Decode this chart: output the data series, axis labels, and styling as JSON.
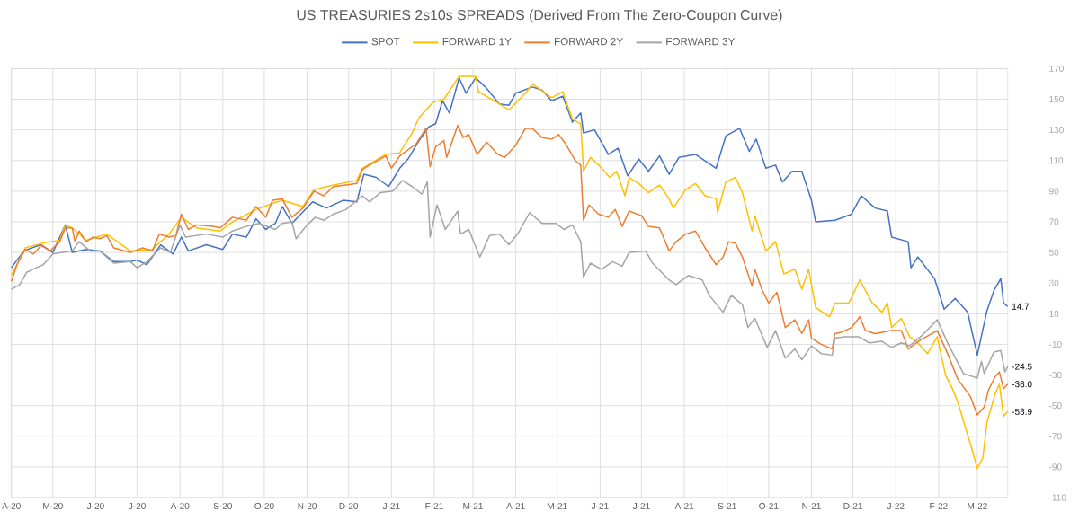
{
  "chart_data": {
    "type": "line",
    "title": "US TREASURIES 2s10s SPREADS (Derived From The Zero-Coupon Curve)",
    "xlim": [
      "2020-04-01",
      "2022-03-23"
    ],
    "ylim": [
      -110,
      170
    ],
    "xticks": [
      {
        "value": "2020-04-01",
        "label": "A-20"
      },
      {
        "value": "2020-05-01",
        "label": "M-20"
      },
      {
        "value": "2020-06-01",
        "label": "J-20"
      },
      {
        "value": "2020-07-01",
        "label": "J-20"
      },
      {
        "value": "2020-08-01",
        "label": "A-20"
      },
      {
        "value": "2020-09-01",
        "label": "S-20"
      },
      {
        "value": "2020-10-01",
        "label": "O-20"
      },
      {
        "value": "2020-11-01",
        "label": "N-20"
      },
      {
        "value": "2020-12-01",
        "label": "D-20"
      },
      {
        "value": "2021-01-01",
        "label": "J-21"
      },
      {
        "value": "2021-02-01",
        "label": "F-21"
      },
      {
        "value": "2021-03-01",
        "label": "M-21"
      },
      {
        "value": "2021-04-01",
        "label": "A-21"
      },
      {
        "value": "2021-05-01",
        "label": "M-21"
      },
      {
        "value": "2021-06-01",
        "label": "J-21"
      },
      {
        "value": "2021-07-01",
        "label": "J-21"
      },
      {
        "value": "2021-08-01",
        "label": "A-21"
      },
      {
        "value": "2021-09-01",
        "label": "S-21"
      },
      {
        "value": "2021-10-01",
        "label": "O-21"
      },
      {
        "value": "2021-11-01",
        "label": "N-21"
      },
      {
        "value": "2021-12-01",
        "label": "D-21"
      },
      {
        "value": "2022-01-01",
        "label": "J-22"
      },
      {
        "value": "2022-02-01",
        "label": "F-22"
      },
      {
        "value": "2022-03-01",
        "label": "M-22"
      }
    ],
    "yticks": [
      -110,
      -90,
      -70,
      -50,
      -30,
      -10,
      10,
      30,
      50,
      70,
      90,
      110,
      130,
      150,
      170
    ],
    "grid": true,
    "legend": "top",
    "annotations": [
      {
        "text": "14.7",
        "x": "2022-03-23",
        "y": 14.7
      },
      {
        "text": "-24.5",
        "x": "2022-03-23",
        "y": -24.5
      },
      {
        "text": "-36.0",
        "x": "2022-03-23",
        "y": -36.0
      },
      {
        "text": "-53.9",
        "x": "2022-03-23",
        "y": -53.9
      }
    ],
    "series": [
      {
        "name": "SPOT",
        "color": "#4472c4",
        "x": [
          "2020-04-01",
          "2020-04-10",
          "2020-04-22",
          "2020-05-01",
          "2020-05-10",
          "2020-05-15",
          "2020-05-25",
          "2020-06-04",
          "2020-06-14",
          "2020-06-26",
          "2020-07-01",
          "2020-07-08",
          "2020-07-18",
          "2020-07-27",
          "2020-08-02",
          "2020-08-07",
          "2020-08-20",
          "2020-09-01",
          "2020-09-08",
          "2020-09-18",
          "2020-09-25",
          "2020-10-02",
          "2020-10-09",
          "2020-10-14",
          "2020-10-21",
          "2020-11-05",
          "2020-11-15",
          "2020-11-27",
          "2020-12-07",
          "2020-12-12",
          "2020-12-21",
          "2020-12-30",
          "2021-01-07",
          "2021-01-13",
          "2021-01-21",
          "2021-01-28",
          "2021-02-02",
          "2021-02-07",
          "2021-02-12",
          "2021-02-19",
          "2021-02-24",
          "2021-03-03",
          "2021-03-11",
          "2021-03-20",
          "2021-03-27",
          "2021-04-01",
          "2021-04-13",
          "2021-04-20",
          "2021-04-27",
          "2021-05-05",
          "2021-05-12",
          "2021-05-18",
          "2021-05-20",
          "2021-05-28",
          "2021-06-07",
          "2021-06-14",
          "2021-06-21",
          "2021-06-29",
          "2021-07-06",
          "2021-07-14",
          "2021-07-21",
          "2021-07-28",
          "2021-08-09",
          "2021-08-24",
          "2021-08-31",
          "2021-09-10",
          "2021-09-17",
          "2021-09-22",
          "2021-09-29",
          "2021-10-06",
          "2021-10-11",
          "2021-10-18",
          "2021-10-25",
          "2021-11-01",
          "2021-11-04",
          "2021-11-18",
          "2021-11-30",
          "2021-12-07",
          "2021-12-17",
          "2021-12-26",
          "2021-12-29",
          "2022-01-10",
          "2022-01-12",
          "2022-01-17",
          "2022-01-29",
          "2022-02-05",
          "2022-02-13",
          "2022-02-22",
          "2022-03-01",
          "2022-03-08",
          "2022-03-13",
          "2022-03-18",
          "2022-03-20",
          "2022-03-23"
        ],
        "values": [
          40,
          51,
          55,
          50,
          68,
          50,
          52,
          51,
          44,
          44,
          45,
          42,
          55,
          49,
          60,
          51,
          55,
          52,
          62,
          60,
          72,
          65,
          69,
          80,
          69,
          83,
          79,
          84,
          83,
          101,
          99,
          93,
          105,
          111,
          123,
          132,
          134,
          149,
          141,
          164,
          154,
          164,
          157,
          147,
          146,
          154,
          158,
          156,
          149,
          152,
          135,
          141,
          128,
          130,
          114,
          118,
          100,
          111,
          103,
          113,
          101,
          112,
          114,
          105,
          126,
          131,
          116,
          124,
          105,
          107,
          96,
          103,
          103,
          84,
          70,
          71,
          75,
          87,
          79,
          77,
          60,
          57,
          40,
          47,
          33,
          13,
          20,
          11,
          -17,
          12,
          25,
          33,
          17,
          14.7
        ]
      },
      {
        "name": "FORWARD 1Y",
        "color": "#ffc000",
        "x": [
          "2020-04-01",
          "2020-04-11",
          "2020-04-23",
          "2020-05-06",
          "2020-05-10",
          "2020-05-15",
          "2020-05-25",
          "2020-06-09",
          "2020-06-26",
          "2020-07-12",
          "2020-07-24",
          "2020-08-02",
          "2020-08-13",
          "2020-08-30",
          "2020-09-08",
          "2020-09-25",
          "2020-10-07",
          "2020-10-14",
          "2020-10-29",
          "2020-11-06",
          "2020-11-20",
          "2020-12-07",
          "2020-12-11",
          "2020-12-28",
          "2021-01-07",
          "2021-01-16",
          "2021-01-21",
          "2021-01-31",
          "2021-02-08",
          "2021-02-19",
          "2021-03-03",
          "2021-03-05",
          "2021-03-20",
          "2021-03-27",
          "2021-04-08",
          "2021-04-13",
          "2021-04-27",
          "2021-05-05",
          "2021-05-12",
          "2021-05-18",
          "2021-05-20",
          "2021-05-25",
          "2021-05-31",
          "2021-06-08",
          "2021-06-13",
          "2021-06-19",
          "2021-06-22",
          "2021-06-29",
          "2021-07-06",
          "2021-07-14",
          "2021-07-21",
          "2021-07-24",
          "2021-08-02",
          "2021-08-09",
          "2021-08-16",
          "2021-08-24",
          "2021-08-25",
          "2021-08-31",
          "2021-09-07",
          "2021-09-12",
          "2021-09-19",
          "2021-09-21",
          "2021-09-29",
          "2021-10-06",
          "2021-10-12",
          "2021-10-20",
          "2021-10-25",
          "2021-10-30",
          "2021-11-04",
          "2021-11-14",
          "2021-11-18",
          "2021-11-28",
          "2021-12-06",
          "2021-12-15",
          "2021-12-22",
          "2021-12-26",
          "2021-12-29",
          "2022-01-05",
          "2022-01-11",
          "2022-01-17",
          "2022-01-24",
          "2022-01-31",
          "2022-02-06",
          "2022-02-11",
          "2022-02-15",
          "2022-02-19",
          "2022-02-25",
          "2022-03-01",
          "2022-03-05",
          "2022-03-08",
          "2022-03-14",
          "2022-03-17",
          "2022-03-20",
          "2022-03-23"
        ],
        "values": [
          35,
          53,
          56,
          58,
          68,
          66,
          58,
          62,
          51,
          52,
          62,
          73,
          66,
          64,
          70,
          78,
          82,
          84,
          80,
          91,
          94,
          97,
          105,
          114,
          115,
          128,
          138,
          148,
          150,
          165,
          165,
          155,
          147,
          143,
          154,
          160,
          151,
          155,
          137,
          134,
          103,
          112,
          107,
          99,
          103,
          87,
          99,
          95,
          89,
          94,
          85,
          79,
          91,
          95,
          87,
          85,
          76,
          96,
          99,
          89,
          64,
          74,
          51,
          57,
          36,
          39,
          26,
          39,
          14,
          8,
          17,
          17,
          32,
          17,
          11,
          17,
          1,
          7,
          -5,
          -9,
          -16,
          -5,
          -30,
          -39,
          -48,
          -60,
          -78,
          -91,
          -84,
          -61,
          -42,
          -36,
          -57,
          -53.9
        ]
      },
      {
        "name": "FORWARD 2Y",
        "color": "#ed7d31",
        "x": [
          "2020-04-01",
          "2020-04-05",
          "2020-04-11",
          "2020-04-17",
          "2020-04-23",
          "2020-04-29",
          "2020-05-06",
          "2020-05-10",
          "2020-05-15",
          "2020-05-17",
          "2020-05-20",
          "2020-05-25",
          "2020-05-30",
          "2020-06-04",
          "2020-06-09",
          "2020-06-14",
          "2020-06-26",
          "2020-07-05",
          "2020-07-12",
          "2020-07-17",
          "2020-07-24",
          "2020-07-29",
          "2020-08-02",
          "2020-08-07",
          "2020-08-13",
          "2020-08-25",
          "2020-08-30",
          "2020-09-08",
          "2020-09-18",
          "2020-09-25",
          "2020-10-02",
          "2020-10-07",
          "2020-10-14",
          "2020-10-21",
          "2020-10-29",
          "2020-11-06",
          "2020-11-13",
          "2020-11-20",
          "2020-11-29",
          "2020-12-07",
          "2020-12-11",
          "2020-12-16",
          "2020-12-28",
          "2021-01-01",
          "2021-01-07",
          "2021-01-19",
          "2021-01-26",
          "2021-01-29",
          "2021-02-02",
          "2021-02-08",
          "2021-02-10",
          "2021-02-18",
          "2021-02-22",
          "2021-02-26",
          "2021-03-04",
          "2021-03-11",
          "2021-03-19",
          "2021-03-24",
          "2021-04-01",
          "2021-04-08",
          "2021-04-13",
          "2021-04-20",
          "2021-04-27",
          "2021-05-02",
          "2021-05-07",
          "2021-05-14",
          "2021-05-18",
          "2021-05-20",
          "2021-05-24",
          "2021-05-31",
          "2021-06-07",
          "2021-06-12",
          "2021-06-17",
          "2021-06-22",
          "2021-07-01",
          "2021-07-06",
          "2021-07-14",
          "2021-07-21",
          "2021-07-26",
          "2021-08-02",
          "2021-08-09",
          "2021-08-16",
          "2021-08-24",
          "2021-08-29",
          "2021-09-02",
          "2021-09-07",
          "2021-09-12",
          "2021-09-19",
          "2021-09-21",
          "2021-09-26",
          "2021-10-01",
          "2021-10-07",
          "2021-10-13",
          "2021-10-20",
          "2021-10-25",
          "2021-10-30",
          "2021-11-01",
          "2021-11-08",
          "2021-11-16",
          "2021-11-18",
          "2021-11-23",
          "2021-11-30",
          "2021-12-06",
          "2021-12-10",
          "2021-12-17",
          "2021-12-29",
          "2022-01-05",
          "2022-01-10",
          "2022-01-19",
          "2022-01-31",
          "2022-02-08",
          "2022-02-15",
          "2022-02-24",
          "2022-03-01",
          "2022-03-06",
          "2022-03-09",
          "2022-03-14",
          "2022-03-17",
          "2022-03-20",
          "2022-03-23"
        ],
        "values": [
          31,
          42,
          52,
          49,
          55,
          51,
          57,
          66,
          66,
          57,
          64,
          57,
          60,
          59,
          61,
          53,
          50,
          53,
          51,
          62,
          60,
          61,
          75,
          65,
          68,
          67,
          66,
          73,
          71,
          80,
          73,
          84,
          85,
          73,
          79,
          90,
          87,
          93,
          94,
          95,
          104,
          107,
          113,
          105,
          113,
          121,
          131,
          106,
          119,
          123,
          112,
          133,
          125,
          127,
          114,
          122,
          114,
          112,
          120,
          131,
          131,
          125,
          124,
          127,
          121,
          110,
          107,
          71,
          81,
          75,
          73,
          78,
          67,
          77,
          74,
          67,
          66,
          51,
          57,
          62,
          64,
          53,
          42,
          47,
          57,
          56,
          47,
          28,
          39,
          26,
          17,
          24,
          1,
          6,
          -3,
          6,
          -6,
          -10,
          -13,
          -3,
          -2,
          1,
          8,
          -1,
          -3,
          -1,
          -1,
          -13,
          -7,
          -1,
          -17,
          -33,
          -44,
          -56,
          -51,
          -40,
          -31,
          -28,
          -39,
          -36.0
        ]
      },
      {
        "name": "FORWARD 3Y",
        "color": "#a5a5a5",
        "x": [
          "2020-04-01",
          "2020-04-07",
          "2020-04-12",
          "2020-04-19",
          "2020-04-24",
          "2020-05-01",
          "2020-05-08",
          "2020-05-15",
          "2020-05-20",
          "2020-05-28",
          "2020-06-04",
          "2020-06-14",
          "2020-06-26",
          "2020-07-01",
          "2020-07-08",
          "2020-07-18",
          "2020-07-25",
          "2020-08-01",
          "2020-08-05",
          "2020-08-20",
          "2020-09-01",
          "2020-09-08",
          "2020-09-18",
          "2020-09-27",
          "2020-10-09",
          "2020-10-14",
          "2020-10-21",
          "2020-10-24",
          "2020-11-01",
          "2020-11-07",
          "2020-11-13",
          "2020-11-20",
          "2020-11-29",
          "2020-12-07",
          "2020-12-11",
          "2020-12-16",
          "2020-12-24",
          "2021-01-02",
          "2021-01-09",
          "2021-01-16",
          "2021-01-23",
          "2021-01-27",
          "2021-01-29",
          "2021-02-03",
          "2021-02-09",
          "2021-02-18",
          "2021-02-20",
          "2021-02-26",
          "2021-03-06",
          "2021-03-13",
          "2021-03-20",
          "2021-03-27",
          "2021-04-03",
          "2021-04-11",
          "2021-04-20",
          "2021-04-30",
          "2021-05-06",
          "2021-05-12",
          "2021-05-18",
          "2021-05-20",
          "2021-05-25",
          "2021-06-02",
          "2021-06-10",
          "2021-06-17",
          "2021-06-22",
          "2021-07-04",
          "2021-07-09",
          "2021-07-21",
          "2021-07-26",
          "2021-08-04",
          "2021-08-14",
          "2021-08-19",
          "2021-08-29",
          "2021-09-04",
          "2021-09-12",
          "2021-09-16",
          "2021-09-21",
          "2021-09-30",
          "2021-10-06",
          "2021-10-13",
          "2021-10-20",
          "2021-10-25",
          "2021-11-01",
          "2021-11-08",
          "2021-11-16",
          "2021-11-18",
          "2021-11-25",
          "2021-12-05",
          "2021-12-13",
          "2021-12-22",
          "2021-12-29",
          "2022-01-05",
          "2022-01-11",
          "2022-01-19",
          "2022-01-31",
          "2022-02-08",
          "2022-02-19",
          "2022-03-01",
          "2022-03-04",
          "2022-03-06",
          "2022-03-13",
          "2022-03-18",
          "2022-03-21",
          "2022-03-23"
        ],
        "values": [
          26,
          29,
          37,
          40,
          42,
          49,
          50,
          51,
          57,
          51,
          51,
          43,
          44,
          40,
          44,
          53,
          50,
          68,
          60,
          62,
          60,
          64,
          67,
          69,
          65,
          69,
          70,
          59,
          68,
          73,
          71,
          75,
          78,
          84,
          87,
          83,
          89,
          90,
          97,
          93,
          88,
          96,
          60,
          81,
          65,
          77,
          62,
          65,
          47,
          61,
          62,
          55,
          63,
          76,
          69,
          69,
          65,
          68,
          57,
          34,
          43,
          39,
          44,
          41,
          50,
          51,
          43,
          32,
          29,
          35,
          32,
          22,
          11,
          22,
          16,
          1,
          7,
          -12,
          -1,
          -19,
          -13,
          -20,
          -11,
          -16,
          -17,
          -6,
          -5,
          -5,
          -9,
          -8,
          -12,
          -9,
          -11,
          -5,
          6,
          -10,
          -29,
          -32,
          -21,
          -29,
          -15,
          -14,
          -28,
          -24.5
        ]
      }
    ]
  }
}
